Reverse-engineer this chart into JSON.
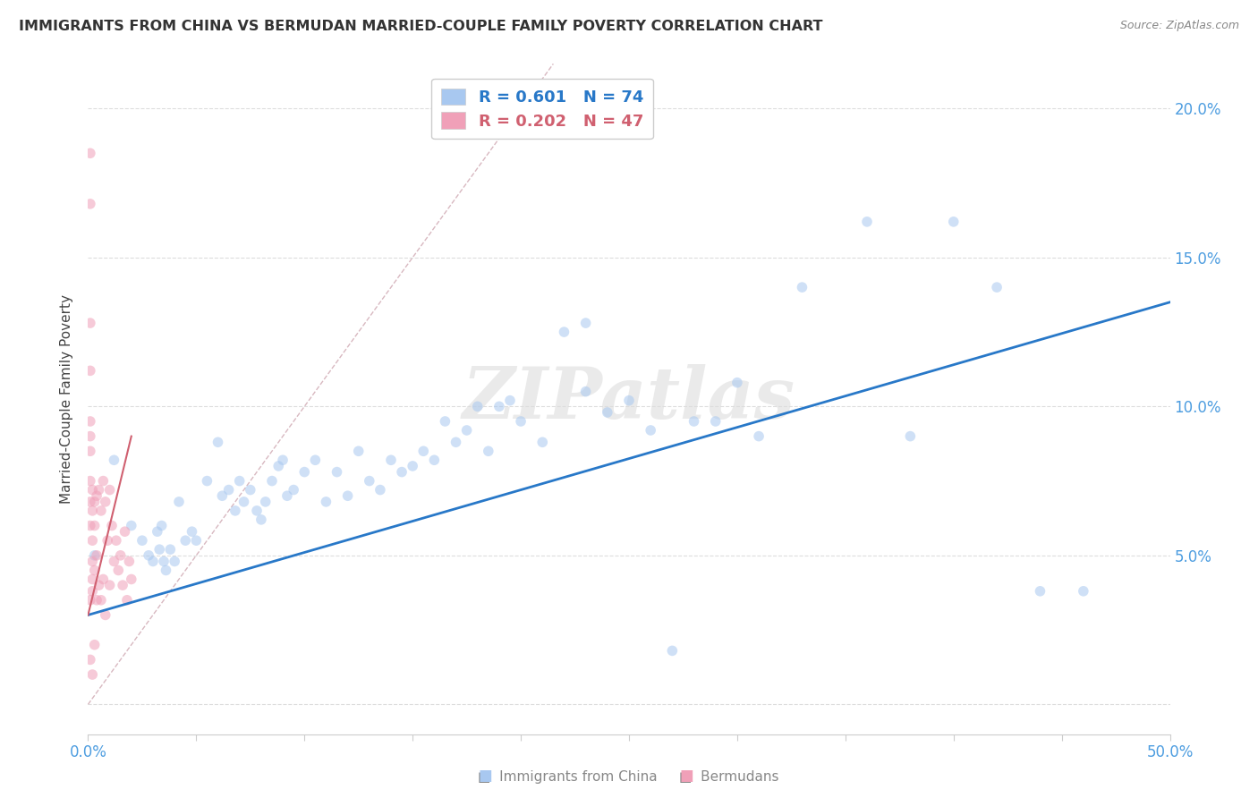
{
  "title": "IMMIGRANTS FROM CHINA VS BERMUDAN MARRIED-COUPLE FAMILY POVERTY CORRELATION CHART",
  "source": "Source: ZipAtlas.com",
  "ylabel": "Married-Couple Family Poverty",
  "xlim": [
    0.0,
    0.5
  ],
  "ylim": [
    -0.01,
    0.215
  ],
  "xticks": [
    0.0,
    0.05,
    0.1,
    0.15,
    0.2,
    0.25,
    0.3,
    0.35,
    0.4,
    0.45,
    0.5
  ],
  "yticks": [
    0.0,
    0.05,
    0.1,
    0.15,
    0.2
  ],
  "blue_color": "#a8c8f0",
  "pink_color": "#f0a0b8",
  "line_blue": "#2878c8",
  "line_pink": "#d06070",
  "line_dashed_color": "#d8b8c0",
  "legend_R1": "R = 0.601",
  "legend_N1": "N = 74",
  "legend_R2": "R = 0.202",
  "legend_N2": "N = 47",
  "watermark": "ZIPatlas",
  "blue_line_x": [
    0.0,
    0.5
  ],
  "blue_line_y": [
    0.03,
    0.135
  ],
  "pink_line_x": [
    0.0,
    0.02
  ],
  "pink_line_y": [
    0.03,
    0.09
  ],
  "diag_line_x": [
    0.0,
    0.215
  ],
  "diag_line_y": [
    0.0,
    0.215
  ],
  "blue_scatter_x": [
    0.003,
    0.012,
    0.02,
    0.025,
    0.028,
    0.03,
    0.032,
    0.033,
    0.034,
    0.035,
    0.036,
    0.038,
    0.04,
    0.042,
    0.045,
    0.048,
    0.05,
    0.055,
    0.06,
    0.062,
    0.065,
    0.068,
    0.07,
    0.072,
    0.075,
    0.078,
    0.08,
    0.082,
    0.085,
    0.088,
    0.09,
    0.092,
    0.095,
    0.1,
    0.105,
    0.11,
    0.115,
    0.12,
    0.125,
    0.13,
    0.135,
    0.14,
    0.145,
    0.15,
    0.155,
    0.16,
    0.165,
    0.17,
    0.175,
    0.18,
    0.185,
    0.19,
    0.195,
    0.2,
    0.21,
    0.22,
    0.23,
    0.24,
    0.25,
    0.26,
    0.27,
    0.28,
    0.29,
    0.3,
    0.31,
    0.33,
    0.36,
    0.38,
    0.4,
    0.42,
    0.44,
    0.46,
    0.2,
    0.23
  ],
  "blue_scatter_y": [
    0.05,
    0.082,
    0.06,
    0.055,
    0.05,
    0.048,
    0.058,
    0.052,
    0.06,
    0.048,
    0.045,
    0.052,
    0.048,
    0.068,
    0.055,
    0.058,
    0.055,
    0.075,
    0.088,
    0.07,
    0.072,
    0.065,
    0.075,
    0.068,
    0.072,
    0.065,
    0.062,
    0.068,
    0.075,
    0.08,
    0.082,
    0.07,
    0.072,
    0.078,
    0.082,
    0.068,
    0.078,
    0.07,
    0.085,
    0.075,
    0.072,
    0.082,
    0.078,
    0.08,
    0.085,
    0.082,
    0.095,
    0.088,
    0.092,
    0.1,
    0.085,
    0.1,
    0.102,
    0.095,
    0.088,
    0.125,
    0.105,
    0.098,
    0.102,
    0.092,
    0.018,
    0.095,
    0.095,
    0.108,
    0.09,
    0.14,
    0.162,
    0.09,
    0.162,
    0.14,
    0.038,
    0.038,
    0.204,
    0.128
  ],
  "pink_scatter_x": [
    0.001,
    0.001,
    0.001,
    0.001,
    0.001,
    0.001,
    0.001,
    0.001,
    0.001,
    0.001,
    0.001,
    0.001,
    0.002,
    0.002,
    0.002,
    0.002,
    0.002,
    0.002,
    0.002,
    0.003,
    0.003,
    0.003,
    0.003,
    0.004,
    0.004,
    0.004,
    0.005,
    0.005,
    0.006,
    0.006,
    0.007,
    0.007,
    0.008,
    0.008,
    0.009,
    0.01,
    0.01,
    0.011,
    0.012,
    0.013,
    0.014,
    0.015,
    0.016,
    0.017,
    0.018,
    0.019,
    0.02
  ],
  "pink_scatter_y": [
    0.185,
    0.168,
    0.128,
    0.112,
    0.095,
    0.09,
    0.085,
    0.075,
    0.068,
    0.06,
    0.035,
    0.015,
    0.072,
    0.065,
    0.055,
    0.048,
    0.042,
    0.038,
    0.01,
    0.068,
    0.06,
    0.045,
    0.02,
    0.07,
    0.05,
    0.035,
    0.072,
    0.04,
    0.065,
    0.035,
    0.075,
    0.042,
    0.068,
    0.03,
    0.055,
    0.072,
    0.04,
    0.06,
    0.048,
    0.055,
    0.045,
    0.05,
    0.04,
    0.058,
    0.035,
    0.048,
    0.042
  ],
  "marker_size": 70,
  "marker_alpha": 0.55
}
